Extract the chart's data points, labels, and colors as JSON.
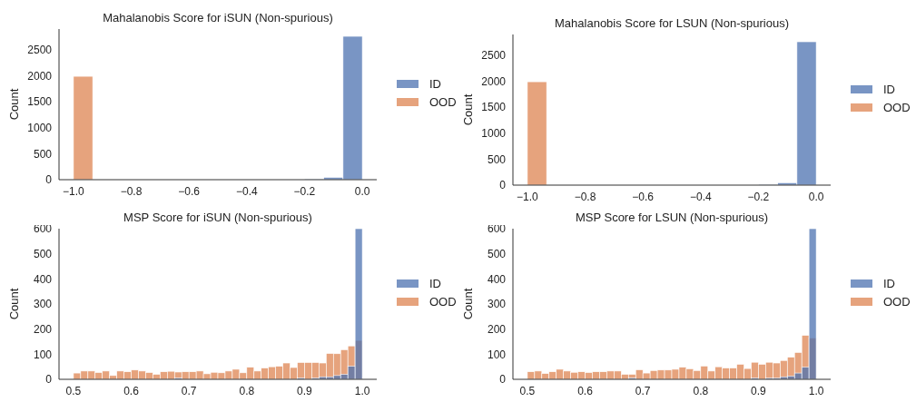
{
  "chart_data": [
    {
      "type": "histogram",
      "title": "Mahalanobis Score for iSUN (Non-spurious)",
      "ylabel": "Count",
      "legend": "right",
      "bins": [
        -1,
        -0.9333,
        -0.8667,
        -0.8,
        -0.7333,
        -0.6667,
        -0.6,
        -0.5333,
        -0.4667,
        -0.4,
        -0.3333,
        -0.2667,
        -0.2,
        -0.1333,
        -0.0667,
        0
      ],
      "series": [
        {
          "name": "ID",
          "color": "#4c72b0",
          "values": [
            0,
            0,
            0,
            0,
            0,
            0,
            0,
            0,
            0,
            0,
            0,
            0,
            15,
            45,
            2760
          ]
        },
        {
          "name": "OOD",
          "color": "#dd8452",
          "values": [
            1990,
            0,
            0,
            0,
            0,
            0,
            0,
            0,
            0,
            0,
            0,
            0,
            0,
            0,
            0
          ]
        }
      ],
      "xlim": [
        -1.05,
        0.05
      ],
      "xticks": [
        {
          "value": -1,
          "label": "−1.0"
        },
        {
          "value": -0.8,
          "label": "−0.8"
        },
        {
          "value": -0.6,
          "label": "−0.6"
        },
        {
          "value": -0.4,
          "label": "−0.4"
        },
        {
          "value": -0.2,
          "label": "−0.2"
        },
        {
          "value": 0,
          "label": "0.0"
        }
      ],
      "ylim": [
        0,
        2900
      ],
      "yticks": [
        0,
        500,
        1000,
        1500,
        2000,
        2500
      ],
      "grid": false
    },
    {
      "type": "histogram",
      "title": "Mahalanobis Score for LSUN (Non-spurious)",
      "ylabel": "Count",
      "legend": "right",
      "bins": [
        -1,
        -0.9333,
        -0.8667,
        -0.8,
        -0.7333,
        -0.6667,
        -0.6,
        -0.5333,
        -0.4667,
        -0.4,
        -0.3333,
        -0.2667,
        -0.2,
        -0.1333,
        -0.0667,
        0
      ],
      "series": [
        {
          "name": "ID",
          "color": "#4c72b0",
          "values": [
            0,
            0,
            0,
            0,
            0,
            0,
            0,
            0,
            0,
            0,
            0,
            0,
            15,
            45,
            2760
          ]
        },
        {
          "name": "OOD",
          "color": "#dd8452",
          "values": [
            1990,
            0,
            0,
            0,
            0,
            0,
            0,
            0,
            0,
            0,
            0,
            0,
            0,
            0,
            0
          ]
        }
      ],
      "xlim": [
        -1.05,
        0.05
      ],
      "xticks": [
        {
          "value": -1,
          "label": "−1.0"
        },
        {
          "value": -0.8,
          "label": "−0.8"
        },
        {
          "value": -0.6,
          "label": "−0.6"
        },
        {
          "value": -0.4,
          "label": "−0.4"
        },
        {
          "value": -0.2,
          "label": "−0.2"
        },
        {
          "value": 0,
          "label": "0.0"
        }
      ],
      "ylim": [
        0,
        2900
      ],
      "yticks": [
        0,
        500,
        1000,
        1500,
        2000,
        2500
      ],
      "grid": false
    },
    {
      "type": "histogram",
      "title": "MSP Score for iSUN (Non-spurious)",
      "ylabel": "Count",
      "legend": "right",
      "bins": [
        0.5,
        0.5125,
        0.525,
        0.5375,
        0.55,
        0.5625,
        0.575,
        0.5875,
        0.6,
        0.6125,
        0.625,
        0.6375,
        0.65,
        0.6625,
        0.675,
        0.6875,
        0.7,
        0.7125,
        0.725,
        0.7375,
        0.75,
        0.7625,
        0.775,
        0.7875,
        0.8,
        0.8125,
        0.825,
        0.8375,
        0.85,
        0.8625,
        0.875,
        0.8875,
        0.9,
        0.9125,
        0.925,
        0.9375,
        0.95,
        0.9625,
        0.975,
        0.9875,
        1.0
      ],
      "series": [
        {
          "name": "ID",
          "color": "#4c72b0",
          "values": [
            0,
            0,
            0,
            0,
            0,
            0,
            0,
            0,
            0,
            0,
            0,
            0,
            0,
            0,
            5,
            0,
            0,
            0,
            0,
            0,
            0,
            0,
            0,
            0,
            0,
            0,
            0,
            0,
            0,
            0,
            0,
            5,
            0,
            5,
            10,
            10,
            15,
            20,
            52,
            600
          ]
        },
        {
          "name": "OOD",
          "color": "#dd8452",
          "values": [
            25,
            33,
            33,
            27,
            33,
            15,
            33,
            30,
            37,
            33,
            27,
            20,
            30,
            32,
            29,
            30,
            30,
            33,
            22,
            28,
            26,
            33,
            40,
            26,
            48,
            33,
            45,
            50,
            52,
            65,
            47,
            67,
            67,
            67,
            65,
            103,
            102,
            118,
            133,
            155
          ]
        }
      ],
      "xlim": [
        0.475,
        1.025
      ],
      "xticks": [
        {
          "value": 0.5,
          "label": "0.5"
        },
        {
          "value": 0.6,
          "label": "0.6"
        },
        {
          "value": 0.7,
          "label": "0.7"
        },
        {
          "value": 0.8,
          "label": "0.8"
        },
        {
          "value": 0.9,
          "label": "0.9"
        },
        {
          "value": 1,
          "label": "1.0"
        }
      ],
      "ylim": [
        0,
        600
      ],
      "yticks": [
        0,
        100,
        200,
        300,
        400,
        500,
        600
      ],
      "grid": false
    },
    {
      "type": "histogram",
      "title": "MSP Score for LSUN (Non-spurious)",
      "ylabel": "Count",
      "legend": "right",
      "bins": [
        0.5,
        0.5125,
        0.525,
        0.5375,
        0.55,
        0.5625,
        0.575,
        0.5875,
        0.6,
        0.6125,
        0.625,
        0.6375,
        0.65,
        0.6625,
        0.675,
        0.6875,
        0.7,
        0.7125,
        0.725,
        0.7375,
        0.75,
        0.7625,
        0.775,
        0.7875,
        0.8,
        0.8125,
        0.825,
        0.8375,
        0.85,
        0.8625,
        0.875,
        0.8875,
        0.9,
        0.9125,
        0.925,
        0.9375,
        0.95,
        0.9625,
        0.975,
        0.9875,
        1.0
      ],
      "series": [
        {
          "name": "ID",
          "color": "#4c72b0",
          "values": [
            0,
            0,
            0,
            0,
            0,
            0,
            0,
            0,
            0,
            0,
            0,
            0,
            0,
            0,
            5,
            0,
            0,
            0,
            0,
            0,
            0,
            0,
            0,
            0,
            0,
            0,
            0,
            0,
            0,
            0,
            0,
            5,
            0,
            5,
            5,
            10,
            13,
            25,
            48,
            600
          ]
        },
        {
          "name": "OOD",
          "color": "#dd8452",
          "values": [
            30,
            33,
            23,
            30,
            40,
            33,
            28,
            30,
            27,
            30,
            30,
            33,
            33,
            20,
            20,
            38,
            25,
            35,
            37,
            37,
            40,
            48,
            42,
            35,
            53,
            33,
            50,
            45,
            45,
            60,
            43,
            68,
            60,
            68,
            65,
            75,
            88,
            107,
            175,
            165
          ]
        }
      ],
      "xlim": [
        0.475,
        1.025
      ],
      "xticks": [
        {
          "value": 0.5,
          "label": "0.5"
        },
        {
          "value": 0.6,
          "label": "0.6"
        },
        {
          "value": 0.7,
          "label": "0.7"
        },
        {
          "value": 0.8,
          "label": "0.8"
        },
        {
          "value": 0.9,
          "label": "0.9"
        },
        {
          "value": 1,
          "label": "1.0"
        }
      ],
      "ylim": [
        0,
        600
      ],
      "yticks": [
        0,
        100,
        200,
        300,
        400,
        500,
        600
      ],
      "grid": false
    }
  ]
}
